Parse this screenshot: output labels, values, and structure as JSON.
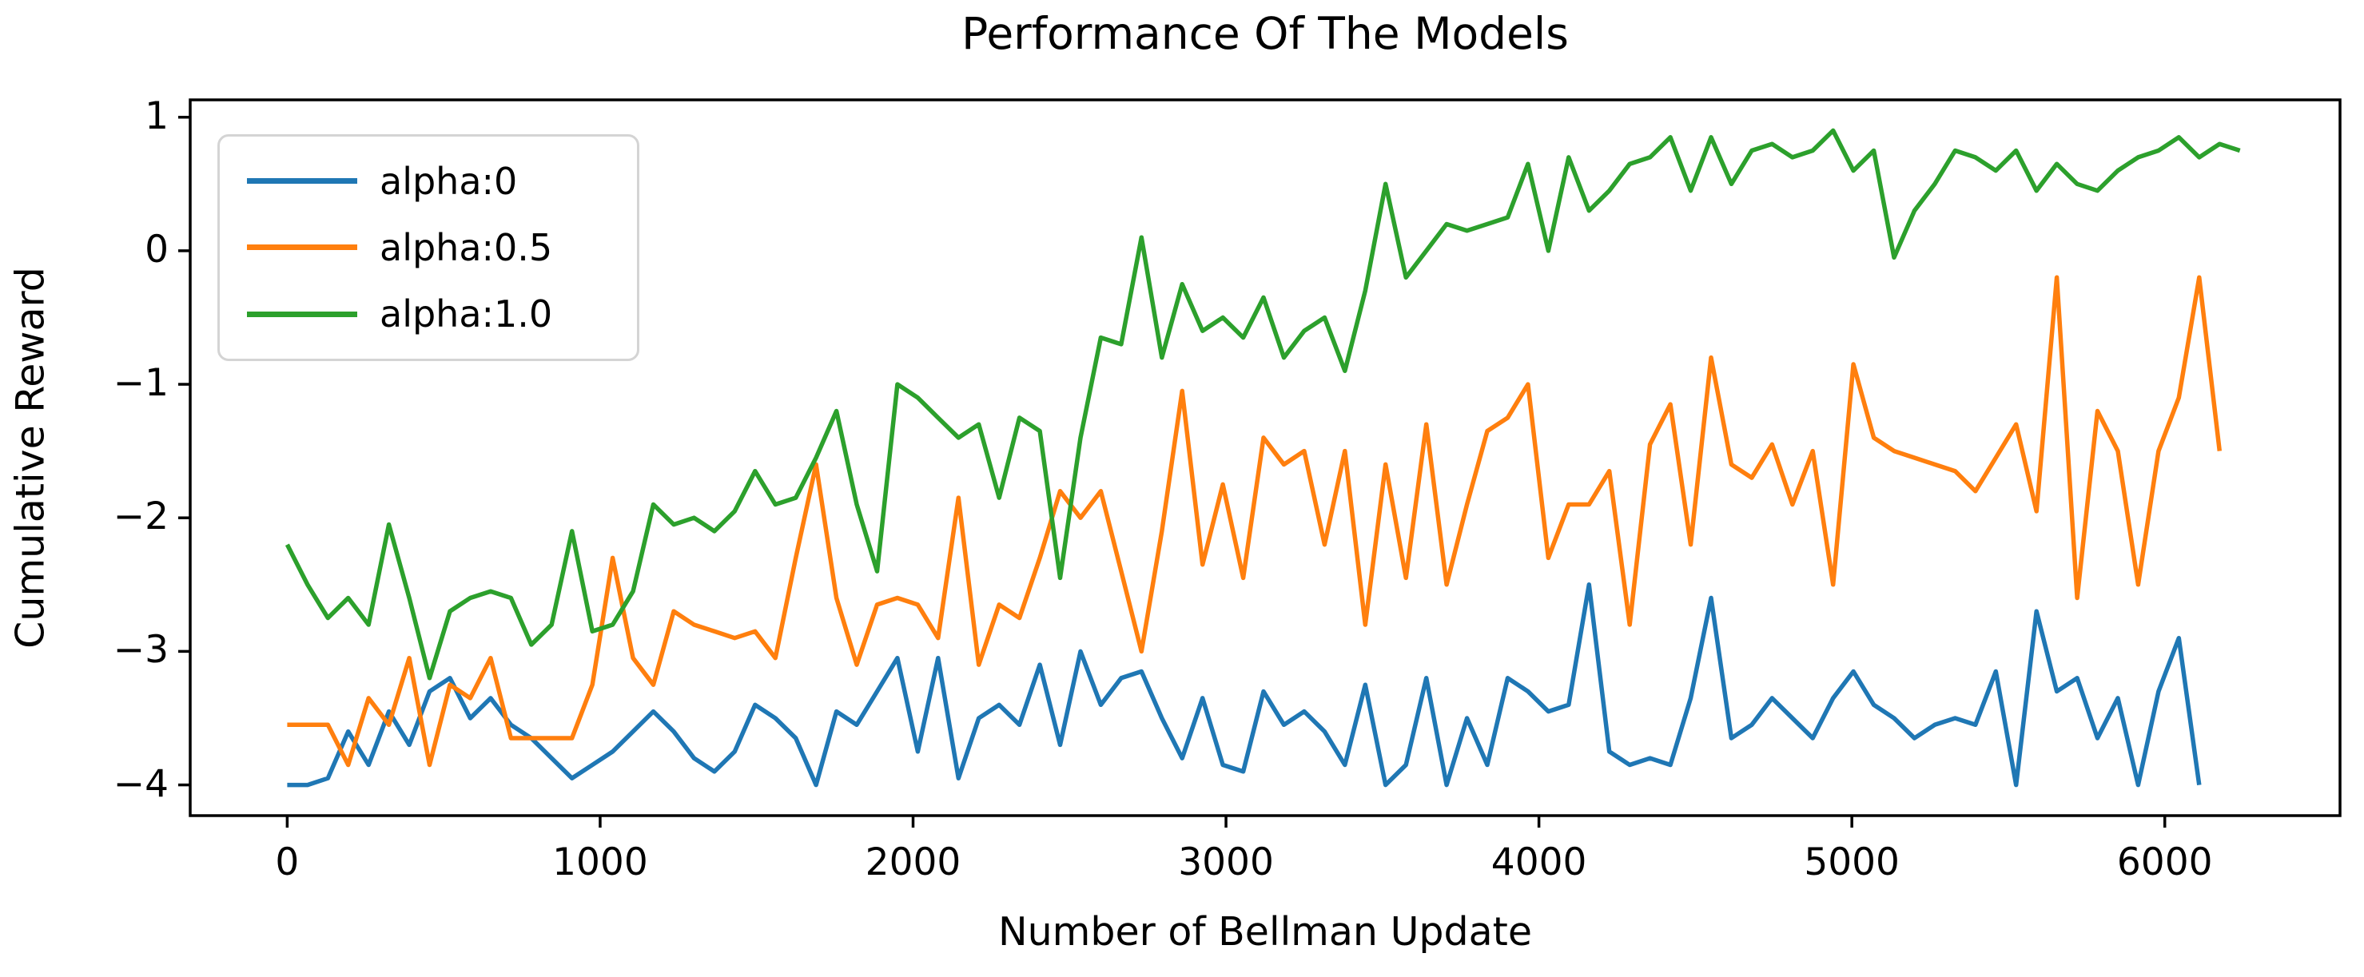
{
  "figure": {
    "title": "Performance Of The Models",
    "xlabel": "Number of Bellman Update",
    "ylabel": "Cumulative Reward"
  },
  "chart_data": {
    "type": "line",
    "title": "Performance Of The Models",
    "xlabel": "Number of Bellman Update",
    "ylabel": "Cumulative Reward",
    "xlim": [
      -310,
      6560
    ],
    "ylim": [
      -4.23,
      1.13
    ],
    "x_ticks": [
      0,
      1000,
      2000,
      3000,
      4000,
      5000,
      6000
    ],
    "x_tick_labels": [
      "0",
      "1000",
      "2000",
      "3000",
      "4000",
      "5000",
      "6000"
    ],
    "y_ticks": [
      1,
      0,
      -1,
      -2,
      -3,
      -4
    ],
    "y_tick_labels": [
      "1",
      "0",
      "−1",
      "−2",
      "−3",
      "−4"
    ],
    "grid": false,
    "legend_position": "upper-left",
    "x_start": 0,
    "x_step": 65,
    "series": [
      {
        "name": "alpha:0",
        "color": "#1f77b4",
        "values": [
          -4.0,
          -4.0,
          -3.95,
          -3.6,
          -3.85,
          -3.45,
          -3.7,
          -3.3,
          -3.2,
          -3.5,
          -3.35,
          -3.55,
          -3.65,
          -3.8,
          -3.95,
          -3.85,
          -3.75,
          -3.6,
          -3.45,
          -3.6,
          -3.8,
          -3.9,
          -3.75,
          -3.4,
          -3.5,
          -3.65,
          -4.0,
          -3.45,
          -3.55,
          -3.3,
          -3.05,
          -3.75,
          -3.05,
          -3.95,
          -3.5,
          -3.4,
          -3.55,
          -3.1,
          -3.7,
          -3.0,
          -3.4,
          -3.2,
          -3.15,
          -3.5,
          -3.8,
          -3.35,
          -3.85,
          -3.9,
          -3.3,
          -3.55,
          -3.45,
          -3.6,
          -3.85,
          -3.25,
          -4.0,
          -3.85,
          -3.2,
          -4.0,
          -3.5,
          -3.85,
          -3.2,
          -3.3,
          -3.45,
          -3.4,
          -2.5,
          -3.75,
          -3.85,
          -3.8,
          -3.85,
          -3.35,
          -2.6,
          -3.65,
          -3.55,
          -3.35,
          -3.5,
          -3.65,
          -3.35,
          -3.15,
          -3.4,
          -3.5,
          -3.65,
          -3.55,
          -3.5,
          -3.55,
          -3.15,
          -4.0,
          -2.7,
          -3.3,
          -3.2,
          -3.65,
          -3.35,
          -4.0,
          -3.3,
          -2.9,
          -4.0
        ]
      },
      {
        "name": "alpha:0.5",
        "color": "#ff7f0e",
        "values": [
          -3.55,
          -3.55,
          -3.55,
          -3.85,
          -3.35,
          -3.55,
          -3.05,
          -3.85,
          -3.25,
          -3.35,
          -3.05,
          -3.65,
          -3.65,
          -3.65,
          -3.65,
          -3.25,
          -2.3,
          -3.05,
          -3.25,
          -2.7,
          -2.8,
          -2.85,
          -2.9,
          -2.85,
          -3.05,
          -2.3,
          -1.6,
          -2.6,
          -3.1,
          -2.65,
          -2.6,
          -2.65,
          -2.9,
          -1.85,
          -3.1,
          -2.65,
          -2.75,
          -2.3,
          -1.8,
          -2.0,
          -1.8,
          -2.4,
          -3.0,
          -2.1,
          -1.05,
          -2.35,
          -1.75,
          -2.45,
          -1.4,
          -1.6,
          -1.5,
          -2.2,
          -1.5,
          -2.8,
          -1.6,
          -2.45,
          -1.3,
          -2.5,
          -1.9,
          -1.35,
          -1.25,
          -1.0,
          -2.3,
          -1.9,
          -1.9,
          -1.65,
          -2.8,
          -1.45,
          -1.15,
          -2.2,
          -0.8,
          -1.6,
          -1.7,
          -1.45,
          -1.9,
          -1.5,
          -2.5,
          -0.85,
          -1.4,
          -1.5,
          -1.55,
          -1.6,
          -1.65,
          -1.8,
          -1.55,
          -1.3,
          -1.95,
          -0.2,
          -2.6,
          -1.2,
          -1.5,
          -2.5,
          -1.5,
          -1.1,
          -0.2,
          -1.5
        ]
      },
      {
        "name": "alpha:1.0",
        "color": "#2ca02c",
        "values": [
          -2.2,
          -2.5,
          -2.75,
          -2.6,
          -2.8,
          -2.05,
          -2.6,
          -3.2,
          -2.7,
          -2.6,
          -2.55,
          -2.6,
          -2.95,
          -2.8,
          -2.1,
          -2.85,
          -2.8,
          -2.55,
          -1.9,
          -2.05,
          -2.0,
          -2.1,
          -1.95,
          -1.65,
          -1.9,
          -1.85,
          -1.55,
          -1.2,
          -1.9,
          -2.4,
          -1.0,
          -1.1,
          -1.25,
          -1.4,
          -1.3,
          -1.85,
          -1.25,
          -1.35,
          -2.45,
          -1.4,
          -0.65,
          -0.7,
          0.1,
          -0.8,
          -0.25,
          -0.6,
          -0.5,
          -0.65,
          -0.35,
          -0.8,
          -0.6,
          -0.5,
          -0.9,
          -0.3,
          0.5,
          -0.2,
          0.0,
          0.2,
          0.15,
          0.2,
          0.25,
          0.65,
          0.0,
          0.7,
          0.3,
          0.45,
          0.65,
          0.7,
          0.85,
          0.45,
          0.85,
          0.5,
          0.75,
          0.8,
          0.7,
          0.75,
          0.9,
          0.6,
          0.75,
          -0.05,
          0.3,
          0.5,
          0.75,
          0.7,
          0.6,
          0.75,
          0.45,
          0.65,
          0.5,
          0.45,
          0.6,
          0.7,
          0.75,
          0.85,
          0.7,
          0.8,
          0.75
        ]
      }
    ]
  }
}
